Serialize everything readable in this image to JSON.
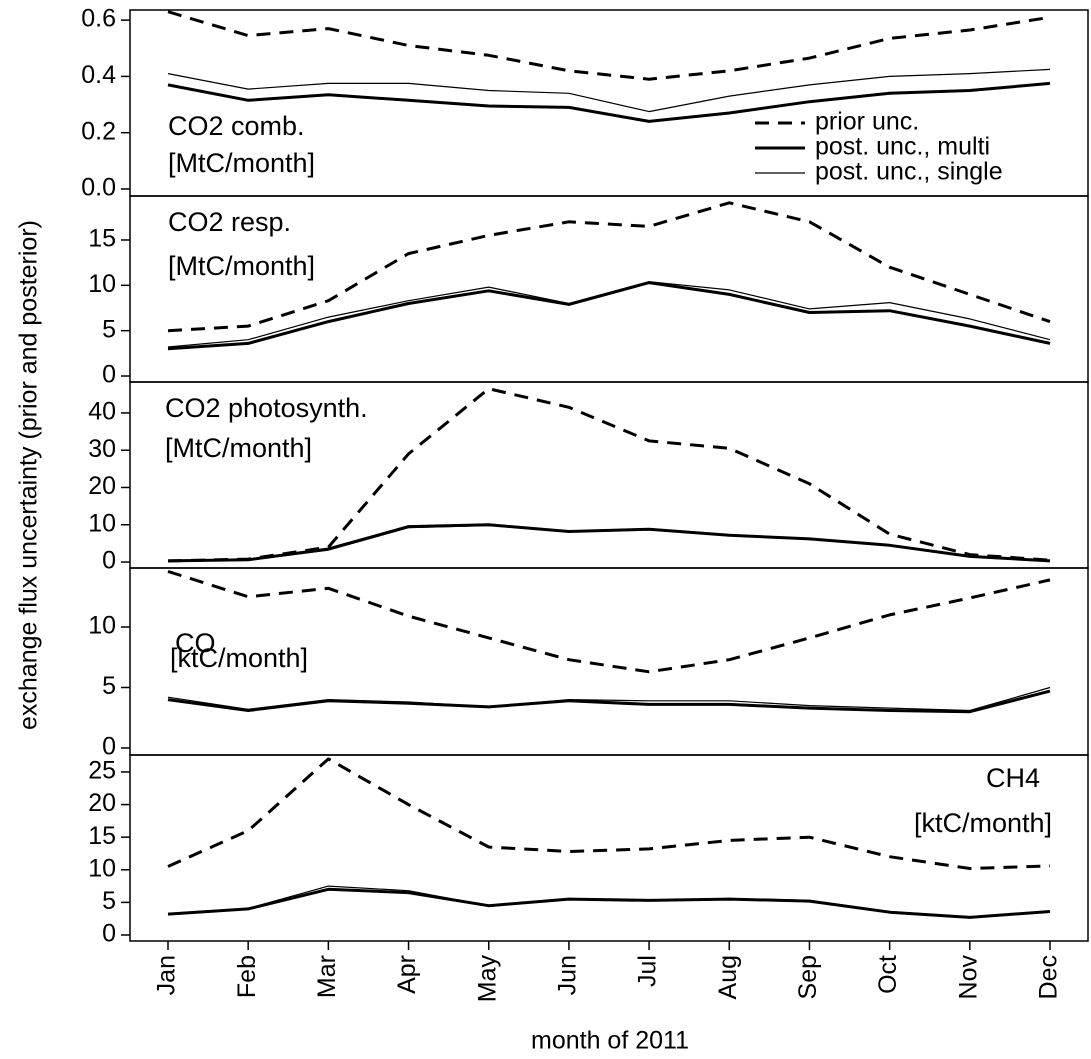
{
  "chart_data": [
    {
      "type": "line",
      "ylabel": "exchange flux uncertainty (prior and posterior)",
      "annotation": [
        "CO2 comb.",
        "[MtC/month]"
      ],
      "ylim": [
        -0.025,
        0.636
      ],
      "yticks": [
        {
          "value": 0,
          "label": "0.0"
        },
        0.2,
        0.4,
        0.6
      ],
      "legend": "lower right",
      "series": [
        {
          "name": "prior unc.",
          "color": "#000000",
          "style": "dashed",
          "width": 3,
          "values": [
            0.63,
            0.545,
            0.57,
            0.51,
            0.475,
            0.42,
            0.39,
            0.42,
            0.465,
            0.535,
            0.565,
            0.61
          ]
        },
        {
          "name": "post. unc., multi",
          "color": "#000000",
          "style": "solid",
          "width": 3,
          "values": [
            0.37,
            0.315,
            0.335,
            0.315,
            0.295,
            0.29,
            0.24,
            0.27,
            0.31,
            0.34,
            0.35,
            0.375
          ]
        },
        {
          "name": "post. unc., single",
          "color": "#000000",
          "style": "solid",
          "width": 1.2,
          "values": [
            0.41,
            0.355,
            0.375,
            0.375,
            0.35,
            0.34,
            0.275,
            0.33,
            0.37,
            0.4,
            0.41,
            0.425
          ]
        }
      ]
    },
    {
      "type": "line",
      "annotation": [
        "CO2 resp.",
        "[MtC/month]"
      ],
      "ylim": [
        -0.66,
        19.85
      ],
      "yticks": [
        0,
        5,
        10,
        15
      ],
      "series": [
        {
          "color": "#000000",
          "style": "dashed",
          "width": 3,
          "values": [
            5,
            5.5,
            8.3,
            13.5,
            15.5,
            17,
            16.5,
            19.1,
            17,
            12,
            9,
            6
          ]
        },
        {
          "color": "#000000",
          "style": "solid",
          "width": 3,
          "values": [
            3,
            3.6,
            6,
            8,
            9.4,
            7.9,
            10.3,
            9,
            7,
            7.2,
            5.5,
            3.6
          ]
        },
        {
          "color": "#000000",
          "style": "solid",
          "width": 1.2,
          "values": [
            3.2,
            4,
            6.5,
            8.3,
            9.8,
            8,
            10.4,
            9.5,
            7.4,
            8.1,
            6.3,
            4
          ]
        }
      ]
    },
    {
      "type": "line",
      "annotation": [
        "CO2 photosynth.",
        "[MtC/month]"
      ],
      "ylim": [
        -1.6,
        48.3
      ],
      "yticks": [
        0,
        10,
        20,
        30,
        40
      ],
      "series": [
        {
          "color": "#000000",
          "style": "dashed",
          "width": 3,
          "values": [
            0.3,
            0.8,
            4,
            29,
            46.5,
            41.5,
            32.5,
            30.5,
            21,
            7.5,
            2,
            0.5
          ]
        },
        {
          "color": "#000000",
          "style": "solid",
          "width": 3,
          "values": [
            0.3,
            0.6,
            3.5,
            9.5,
            10,
            8.2,
            8.8,
            7.2,
            6.2,
            4.5,
            1.5,
            0.3
          ]
        },
        {
          "color": "#000000",
          "style": "solid",
          "width": 1.2,
          "values": [
            0.3,
            0.5,
            3.2,
            9.2,
            9.8,
            8.2,
            8.8,
            7.2,
            6.2,
            4.5,
            1.5,
            0.3
          ]
        }
      ]
    },
    {
      "type": "line",
      "annotation": [
        "CO",
        "[ktC/month]"
      ],
      "ylim": [
        -0.58,
        14.88
      ],
      "yticks": [
        0,
        5,
        10
      ],
      "series": [
        {
          "color": "#000000",
          "style": "dashed",
          "width": 3,
          "values": [
            14.6,
            12.5,
            13.2,
            10.9,
            9.1,
            7.3,
            6.3,
            7.3,
            9.1,
            11,
            12.4,
            13.9
          ]
        },
        {
          "color": "#000000",
          "style": "solid",
          "width": 3,
          "values": [
            4,
            3.1,
            3.9,
            3.7,
            3.4,
            3.9,
            3.6,
            3.6,
            3.3,
            3.1,
            3,
            4.7
          ]
        },
        {
          "color": "#000000",
          "style": "solid",
          "width": 1.2,
          "values": [
            4.2,
            3.2,
            4,
            3.8,
            3.4,
            4,
            3.9,
            3.9,
            3.5,
            3.3,
            3.1,
            5
          ]
        }
      ]
    },
    {
      "type": "line",
      "annotation": [
        "CH4",
        "[ktC/month]"
      ],
      "xlabel": "month of 2011",
      "categories": [
        "Jan",
        "Feb",
        "Mar",
        "Apr",
        "May",
        "Jun",
        "Jul",
        "Aug",
        "Sep",
        "Oct",
        "Nov",
        "Dec"
      ],
      "ylim": [
        -0.92,
        27.6
      ],
      "yticks": [
        0,
        5,
        10,
        15,
        20,
        25
      ],
      "series": [
        {
          "color": "#000000",
          "style": "dashed",
          "width": 3,
          "values": [
            10.5,
            16,
            27,
            20,
            13.5,
            12.8,
            13.2,
            14.5,
            15,
            12,
            10.2,
            10.6
          ]
        },
        {
          "color": "#000000",
          "style": "solid",
          "width": 3,
          "values": [
            3.2,
            4,
            7,
            6.5,
            4.5,
            5.5,
            5.3,
            5.5,
            5.2,
            3.5,
            2.7,
            3.6
          ]
        },
        {
          "color": "#000000",
          "style": "solid",
          "width": 1.2,
          "values": [
            3.3,
            4.1,
            7.5,
            6.8,
            4.5,
            5.6,
            5.3,
            5.6,
            5.3,
            3.6,
            2.7,
            3.5
          ]
        }
      ]
    }
  ]
}
